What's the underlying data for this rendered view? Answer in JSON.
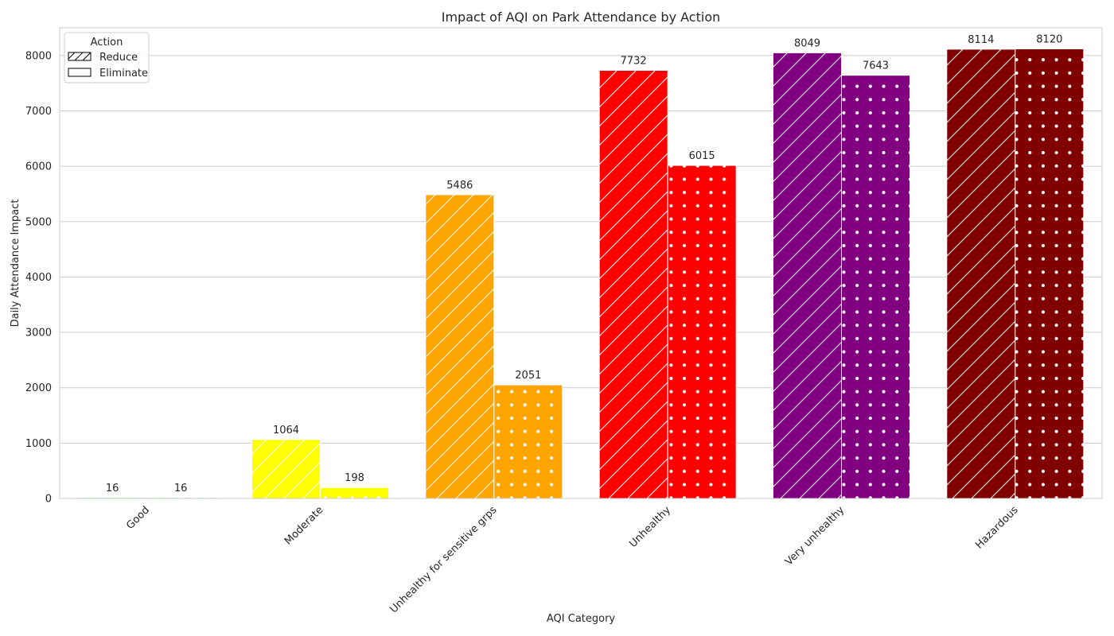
{
  "chart_data": {
    "type": "bar",
    "title": "Impact of AQI on Park Attendance by Action",
    "xlabel": "AQI Category",
    "ylabel": "Daily Attendance Impact",
    "ylim": [
      0,
      8500
    ],
    "yticks": [
      0,
      1000,
      2000,
      3000,
      4000,
      5000,
      6000,
      7000,
      8000
    ],
    "grid": true,
    "legend_position": "top-left",
    "legend_title": "Action",
    "categories": [
      "Good",
      "Moderate",
      "Unhealthy for sensitive grps",
      "Unhealthy",
      "Very unhealthy",
      "Hazardous"
    ],
    "category_colors": [
      "#00e400",
      "#ffff00",
      "#ffa500",
      "#ff0000",
      "#800080",
      "#800000"
    ],
    "series": [
      {
        "name": "Reduce",
        "pattern": "hatch",
        "values": [
          16,
          1064,
          5486,
          7732,
          8049,
          8114
        ]
      },
      {
        "name": "Eliminate",
        "pattern": "dots",
        "values": [
          16,
          198,
          2051,
          6015,
          7643,
          8120
        ]
      }
    ]
  }
}
